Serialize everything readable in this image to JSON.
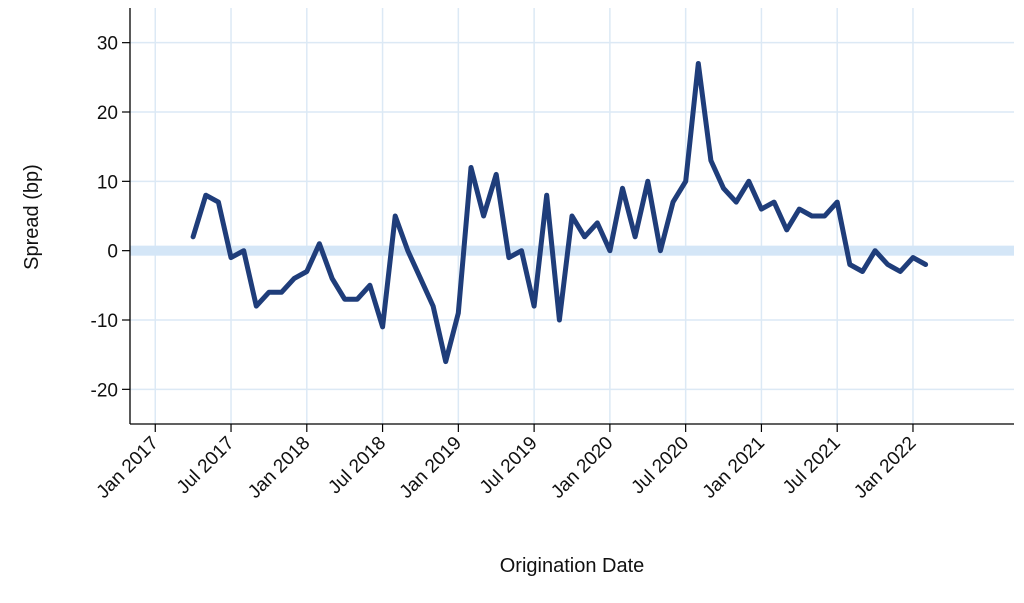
{
  "chart_data": {
    "type": "line",
    "title": "",
    "xlabel": "Origination Date",
    "ylabel": "Spread (bp)",
    "ylim": [
      -25,
      35
    ],
    "xlim": [
      "2016-11",
      "2022-09"
    ],
    "yticks": [
      -20,
      -10,
      0,
      10,
      20,
      30
    ],
    "xticks": [
      "2017-01",
      "2017-07",
      "2018-01",
      "2018-07",
      "2019-01",
      "2019-07",
      "2020-01",
      "2020-07",
      "2021-01",
      "2021-07",
      "2022-01"
    ],
    "xtick_labels": [
      "Jan 2017",
      "Jul 2017",
      "Jan 2018",
      "Jul 2018",
      "Jan 2019",
      "Jul 2019",
      "Jan 2020",
      "Jul 2020",
      "Jan 2021",
      "Jul 2021",
      "Jan 2022"
    ],
    "grid": true,
    "zero_band": true,
    "series": [
      {
        "color": "#1f3d7a",
        "x": [
          "2017-04",
          "2017-05",
          "2017-06",
          "2017-07",
          "2017-08",
          "2017-09",
          "2017-10",
          "2017-11",
          "2017-12",
          "2018-01",
          "2018-02",
          "2018-03",
          "2018-04",
          "2018-05",
          "2018-06",
          "2018-07",
          "2018-08",
          "2018-09",
          "2018-10",
          "2018-11",
          "2018-12",
          "2019-01",
          "2019-02",
          "2019-03",
          "2019-04",
          "2019-05",
          "2019-06",
          "2019-07",
          "2019-08",
          "2019-09",
          "2019-10",
          "2019-11",
          "2019-12",
          "2020-01",
          "2020-02",
          "2020-03",
          "2020-04",
          "2020-05",
          "2020-06",
          "2020-07",
          "2020-08",
          "2020-09",
          "2020-10",
          "2020-11",
          "2020-12",
          "2021-01",
          "2021-02",
          "2021-03",
          "2021-04",
          "2021-05",
          "2021-06",
          "2021-07",
          "2021-08",
          "2021-09",
          "2021-10",
          "2021-11",
          "2021-12",
          "2022-01",
          "2022-02"
        ],
        "values": [
          2,
          8,
          7,
          -1,
          0,
          -8,
          -6,
          -6,
          -4,
          -3,
          1,
          -4,
          -7,
          -7,
          -5,
          -11,
          5,
          0,
          -4,
          -8,
          -16,
          -9,
          12,
          5,
          11,
          -1,
          0,
          -8,
          8,
          -10,
          5,
          2,
          4,
          0,
          9,
          2,
          10,
          0,
          7,
          10,
          27,
          13,
          9,
          7,
          10,
          6,
          7,
          3,
          6,
          5,
          5,
          7,
          -2,
          -3,
          0,
          -2,
          -3,
          -1,
          -2
        ]
      }
    ]
  }
}
